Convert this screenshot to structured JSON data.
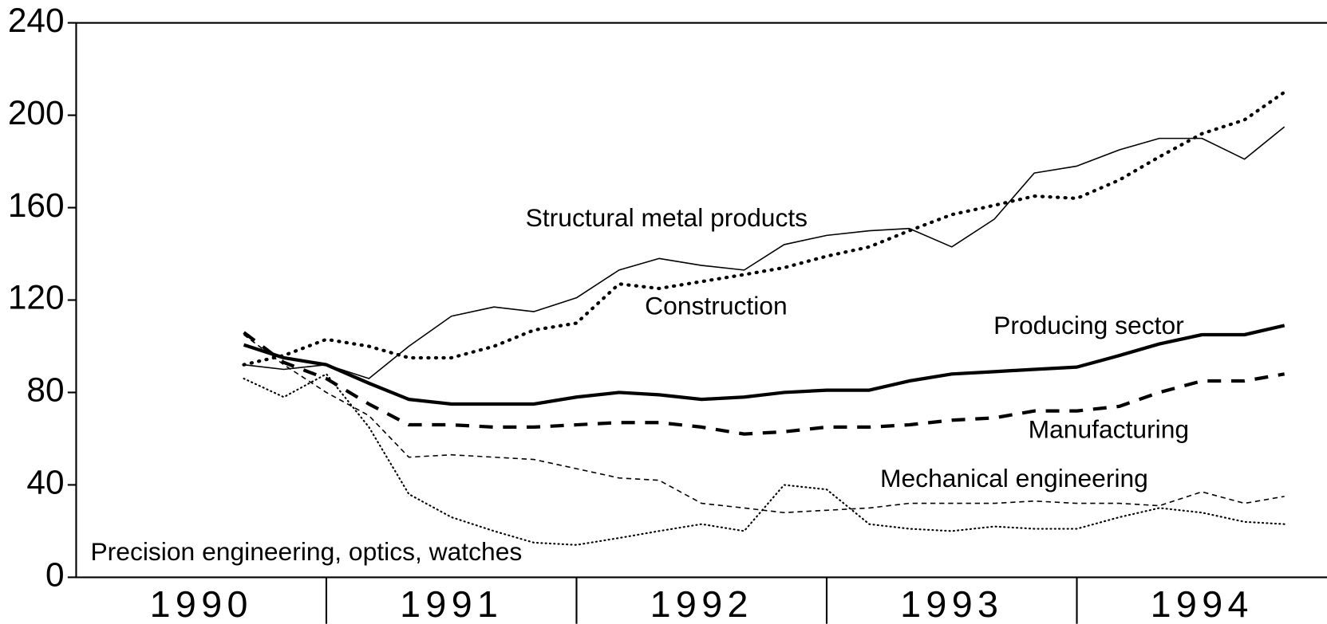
{
  "chart_data": {
    "type": "line",
    "categories": [
      "1990",
      "1991",
      "1992",
      "1993",
      "1994"
    ],
    "xlim": [
      1990,
      1995
    ],
    "xticks": [
      1991,
      1992,
      1993,
      1994
    ],
    "ylim": [
      0,
      240
    ],
    "yticks": [
      0,
      40,
      80,
      120,
      160,
      200,
      240
    ],
    "x": [
      1990.67,
      1990.83,
      1991.0,
      1991.17,
      1991.33,
      1991.5,
      1991.67,
      1991.83,
      1992.0,
      1992.17,
      1992.33,
      1992.5,
      1992.67,
      1992.83,
      1993.0,
      1993.17,
      1993.33,
      1993.5,
      1993.67,
      1993.83,
      1994.0,
      1994.17,
      1994.33,
      1994.5,
      1994.67,
      1994.83
    ],
    "series": [
      {
        "name": "Structural metal products",
        "color": "#000000",
        "style": "solid",
        "width": 1.5,
        "values": [
          92,
          90,
          92,
          86,
          100,
          113,
          117,
          115,
          121,
          133,
          138,
          135,
          133,
          144,
          148,
          150,
          151,
          143,
          155,
          175,
          178,
          185,
          190,
          190,
          181,
          195
        ]
      },
      {
        "name": "Construction",
        "color": "#000000",
        "style": "dotted",
        "width": 4,
        "values": [
          92,
          96,
          103,
          100,
          95,
          95,
          100,
          107,
          110,
          127,
          125,
          128,
          131,
          134,
          139,
          143,
          150,
          157,
          161,
          165,
          164,
          172,
          182,
          192,
          198,
          210
        ]
      },
      {
        "name": "Producing sector",
        "color": "#000000",
        "style": "solid",
        "width": 4,
        "values": [
          100.6,
          95,
          92,
          84,
          77,
          75,
          75,
          75,
          78,
          80,
          79,
          77,
          78,
          80,
          81,
          81,
          85,
          88,
          89,
          90,
          91,
          96,
          101,
          105,
          105,
          109
        ]
      },
      {
        "name": "Manufacturing",
        "color": "#000000",
        "style": "dashed",
        "width": 4,
        "values": [
          106,
          93,
          86,
          75,
          66,
          66,
          65,
          65,
          66,
          67,
          67,
          65,
          62,
          63,
          65,
          65,
          66,
          68,
          69,
          72,
          72,
          74,
          80,
          85,
          85,
          88
        ]
      },
      {
        "name": "Mechanical engineering",
        "color": "#000000",
        "style": "dashed",
        "width": 1.5,
        "values": [
          105,
          92,
          80,
          70,
          52,
          53,
          52,
          51,
          47,
          43,
          42,
          32,
          30,
          28,
          29,
          30,
          32,
          32,
          32,
          33,
          32,
          32,
          31,
          37,
          32,
          35
        ]
      },
      {
        "name": "Precision engineering, optics, watches",
        "color": "#000000",
        "style": "dotted",
        "width": 2,
        "values": [
          86,
          78,
          88,
          65,
          36,
          26,
          20,
          15,
          14,
          17,
          20,
          23,
          20,
          40,
          38,
          23,
          21,
          20,
          22,
          21,
          21,
          26,
          30,
          28,
          24,
          23
        ]
      }
    ]
  }
}
